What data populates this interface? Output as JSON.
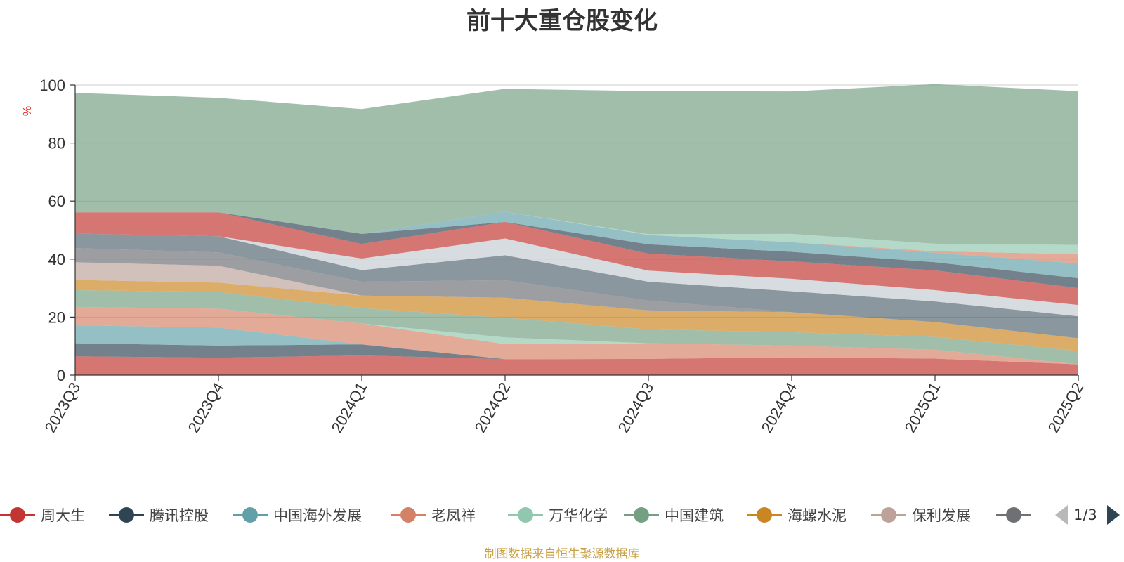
{
  "title": "前十大重仓股变化",
  "source_note": "制图数据来自恒生聚源数据库",
  "legend": {
    "page_indicator": "1/3",
    "items": [
      {
        "label": "周大生",
        "color": "#c23531"
      },
      {
        "label": "腾讯控股",
        "color": "#2f4554"
      },
      {
        "label": "中国海外发展",
        "color": "#61a0a8"
      },
      {
        "label": "老凤祥",
        "color": "#d48265"
      },
      {
        "label": "万华化学",
        "color": "#91c7ae"
      },
      {
        "label": "中国建筑",
        "color": "#749f83"
      },
      {
        "label": "海螺水泥",
        "color": "#ca8622"
      },
      {
        "label": "保利发展",
        "color": "#bda29a"
      },
      {
        "label": "",
        "color": "#6e7074"
      }
    ]
  },
  "chart_data": {
    "type": "area",
    "stacked": true,
    "ylabel": "%",
    "ylim": [
      0,
      100
    ],
    "yticks": [
      0,
      20,
      40,
      60,
      80,
      100
    ],
    "categories": [
      "2023Q3",
      "2023Q4",
      "2024Q1",
      "2024Q2",
      "2024Q3",
      "2024Q4",
      "2025Q1",
      "2025Q2"
    ],
    "grid": true,
    "layers": [
      {
        "color": "#c23531",
        "values": [
          6.5,
          6.0,
          6.8,
          5.5,
          5.6,
          6.1,
          5.7,
          3.7
        ]
      },
      {
        "color": "#2f4554",
        "values": [
          4.5,
          4.2,
          3.8,
          0,
          0,
          0,
          0,
          0
        ]
      },
      {
        "color": "#61a0a8",
        "values": [
          6.2,
          6.2,
          0,
          0,
          0,
          0,
          0,
          0
        ]
      },
      {
        "color": "#d48265",
        "values": [
          6.3,
          6.5,
          7.2,
          5.2,
          5.4,
          4.1,
          3.1,
          0
        ]
      },
      {
        "color": "#91c7ae",
        "values": [
          0,
          0,
          0,
          2.3,
          0,
          0,
          0,
          0
        ]
      },
      {
        "color": "#749f83",
        "values": [
          5.8,
          5.8,
          5.3,
          6.8,
          4.8,
          4.6,
          4.4,
          4.6
        ]
      },
      {
        "color": "#ca8622",
        "values": [
          3.5,
          3.2,
          4.3,
          6.9,
          6.5,
          6.9,
          5.1,
          4.4
        ]
      },
      {
        "color": "#bda29a",
        "values": [
          6.1,
          5.8,
          0,
          0,
          0,
          0,
          0,
          0
        ]
      },
      {
        "color": "#6e7074",
        "values": [
          4.9,
          4.6,
          4.8,
          6.0,
          3.4,
          0,
          0,
          0
        ]
      },
      {
        "color": "#546570",
        "values": [
          5.0,
          5.6,
          4.0,
          8.6,
          6.5,
          7.2,
          7.1,
          7.6
        ]
      },
      {
        "color": "#c4ccd3",
        "values": [
          0,
          0,
          4.0,
          5.8,
          3.8,
          4.3,
          3.9,
          3.9
        ]
      },
      {
        "color": "#c23531",
        "values": [
          7.3,
          8.2,
          5.0,
          5.7,
          5.9,
          6.0,
          6.8,
          5.8
        ]
      },
      {
        "color": "#2f4554",
        "values": [
          0,
          0,
          3.5,
          0,
          3.2,
          3.3,
          2.8,
          3.4
        ]
      },
      {
        "color": "#61a0a8",
        "values": [
          0,
          0,
          0,
          3.5,
          3.2,
          3.3,
          3.3,
          5.1
        ]
      },
      {
        "color": "#d48265",
        "values": [
          0,
          0,
          0,
          0,
          0,
          0,
          0.5,
          3.2
        ]
      },
      {
        "color": "#91c7ae",
        "values": [
          0,
          0,
          0,
          0,
          0.3,
          2.9,
          2.6,
          3.2
        ]
      },
      {
        "color": "#749f83",
        "values": [
          41.2,
          39.5,
          43.0,
          42.4,
          49.3,
          49.1,
          55.0,
          53.0
        ]
      }
    ]
  }
}
